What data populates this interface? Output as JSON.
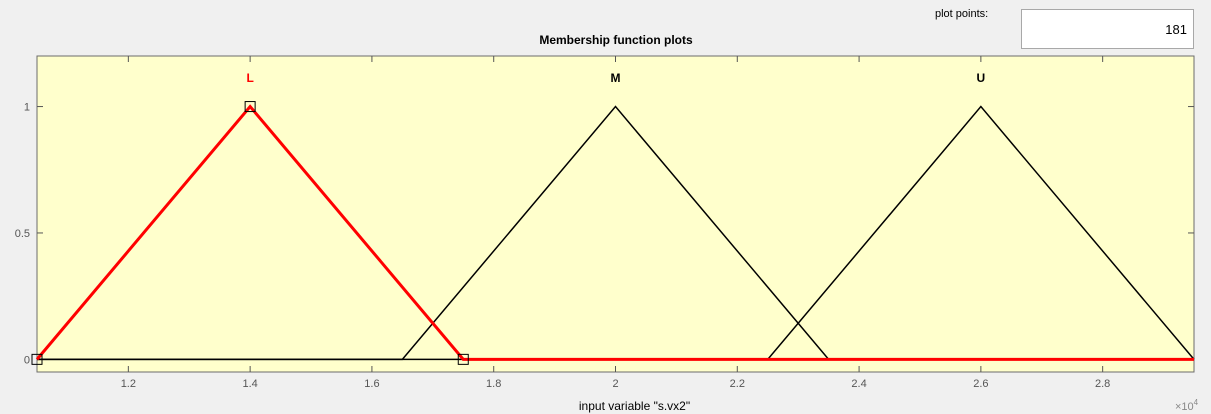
{
  "plot_points": {
    "label": "plot points:",
    "value": "181"
  },
  "panel_title": "Membership function plots",
  "colors": {
    "selected": "#ff0000",
    "unselected": "#000000",
    "plot_bg": "#ffffcc"
  },
  "chart_data": {
    "type": "line",
    "title": "Membership function plots",
    "xlabel": "input variable \"s.vx2\"",
    "ylabel": "",
    "x_exponent_label": "×10",
    "x_exponent_power": "4",
    "xlim": [
      1.05,
      2.95
    ],
    "ylim": [
      -0.05,
      1.2
    ],
    "x_ticks": [
      1.2,
      1.4,
      1.6,
      1.8,
      2.0,
      2.2,
      2.4,
      2.6,
      2.8
    ],
    "x_tick_labels": [
      "1.2",
      "1.4",
      "1.6",
      "1.8",
      "2",
      "2.2",
      "2.4",
      "2.6",
      "2.8"
    ],
    "y_ticks": [
      0,
      0.5,
      1
    ],
    "y_tick_labels": [
      "0",
      "0.5",
      "1"
    ],
    "selected_series": "L",
    "series": [
      {
        "name": "L",
        "x": [
          1.05,
          1.4,
          1.75
        ],
        "y": [
          0,
          1,
          0
        ]
      },
      {
        "name": "M",
        "x": [
          1.65,
          2.0,
          2.35
        ],
        "y": [
          0,
          1,
          0
        ]
      },
      {
        "name": "U",
        "x": [
          2.25,
          2.6,
          2.95
        ],
        "y": [
          0,
          1,
          0
        ]
      }
    ],
    "grid": false
  }
}
